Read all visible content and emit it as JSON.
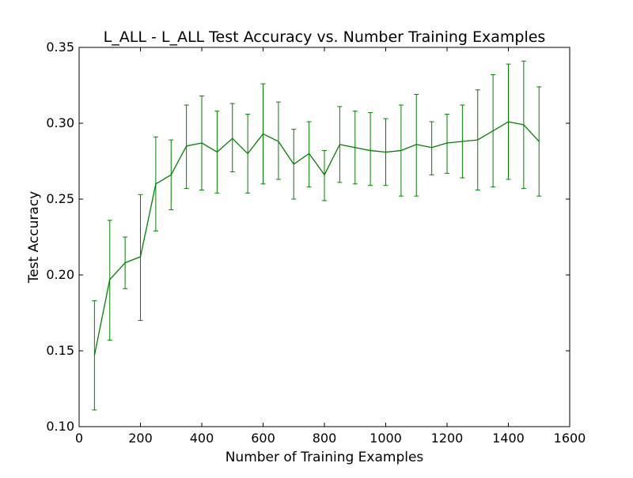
{
  "chart_data": {
    "type": "line",
    "title": "L_ALL - L_ALL Test Accuracy vs. Number Training Examples",
    "xlabel": "Number of Training Examples",
    "ylabel": "Test Accuracy",
    "xlim": [
      0,
      1600
    ],
    "ylim": [
      0.1,
      0.35
    ],
    "xticks": [
      0,
      200,
      400,
      600,
      800,
      1000,
      1200,
      1400,
      1600
    ],
    "xtick_labels": [
      "0",
      "200",
      "400",
      "600",
      "800",
      "1000",
      "1200",
      "1400",
      "1600"
    ],
    "yticks": [
      0.1,
      0.15,
      0.2,
      0.25,
      0.3,
      0.35
    ],
    "ytick_labels": [
      "0.10",
      "0.15",
      "0.20",
      "0.25",
      "0.30",
      "0.35"
    ],
    "grid": false,
    "series": [
      {
        "color": "#008000",
        "x": [
          50,
          100,
          150,
          200,
          250,
          300,
          350,
          400,
          450,
          500,
          550,
          600,
          650,
          700,
          750,
          800,
          850,
          900,
          950,
          1000,
          1050,
          1100,
          1150,
          1200,
          1250,
          1300,
          1350,
          1400,
          1450,
          1500
        ],
        "y": [
          0.147,
          0.197,
          0.208,
          0.212,
          0.26,
          0.266,
          0.285,
          0.287,
          0.281,
          0.29,
          0.28,
          0.293,
          0.288,
          0.273,
          0.28,
          0.266,
          0.286,
          0.284,
          0.282,
          0.281,
          0.282,
          0.286,
          0.284,
          0.287,
          0.288,
          0.289,
          0.295,
          0.301,
          0.299,
          0.288
        ],
        "yerr_low": [
          0.111,
          0.157,
          0.191,
          0.17,
          0.229,
          0.243,
          0.257,
          0.256,
          0.254,
          0.268,
          0.254,
          0.26,
          0.263,
          0.25,
          0.258,
          0.249,
          0.261,
          0.26,
          0.259,
          0.259,
          0.252,
          0.252,
          0.266,
          0.267,
          0.264,
          0.256,
          0.258,
          0.263,
          0.257,
          0.252
        ],
        "yerr_high": [
          0.183,
          0.236,
          0.225,
          0.253,
          0.291,
          0.289,
          0.312,
          0.318,
          0.308,
          0.313,
          0.306,
          0.326,
          0.314,
          0.296,
          0.301,
          0.282,
          0.311,
          0.308,
          0.307,
          0.303,
          0.312,
          0.319,
          0.301,
          0.306,
          0.312,
          0.322,
          0.332,
          0.339,
          0.341,
          0.324
        ]
      }
    ]
  }
}
